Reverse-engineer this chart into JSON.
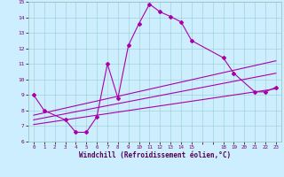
{
  "xlabel": "Windchill (Refroidissement éolien,°C)",
  "ylabel": "",
  "xlim": [
    -0.5,
    23.5
  ],
  "ylim": [
    6,
    15
  ],
  "xticks": [
    0,
    1,
    2,
    3,
    4,
    5,
    6,
    7,
    8,
    9,
    10,
    11,
    12,
    13,
    14,
    15,
    18,
    19,
    20,
    21,
    22,
    23
  ],
  "yticks": [
    6,
    7,
    8,
    9,
    10,
    11,
    12,
    13,
    14,
    15
  ],
  "bg_color": "#cceeff",
  "line_color": "#aa00aa",
  "curve1_x": [
    0,
    1,
    3,
    4,
    5,
    6,
    7,
    8,
    9,
    10,
    11,
    12,
    13,
    14,
    15,
    18,
    19,
    21,
    22,
    23
  ],
  "curve1_y": [
    9.0,
    8.0,
    7.4,
    6.6,
    6.6,
    7.6,
    11.0,
    8.8,
    12.2,
    13.6,
    14.85,
    14.35,
    14.05,
    13.7,
    12.5,
    11.4,
    10.4,
    9.2,
    9.2,
    9.5
  ],
  "line1_x": [
    0,
    23
  ],
  "line1_y": [
    7.7,
    11.2
  ],
  "line2_x": [
    0,
    23
  ],
  "line2_y": [
    7.4,
    10.4
  ],
  "line3_x": [
    0,
    23
  ],
  "line3_y": [
    7.1,
    9.4
  ]
}
